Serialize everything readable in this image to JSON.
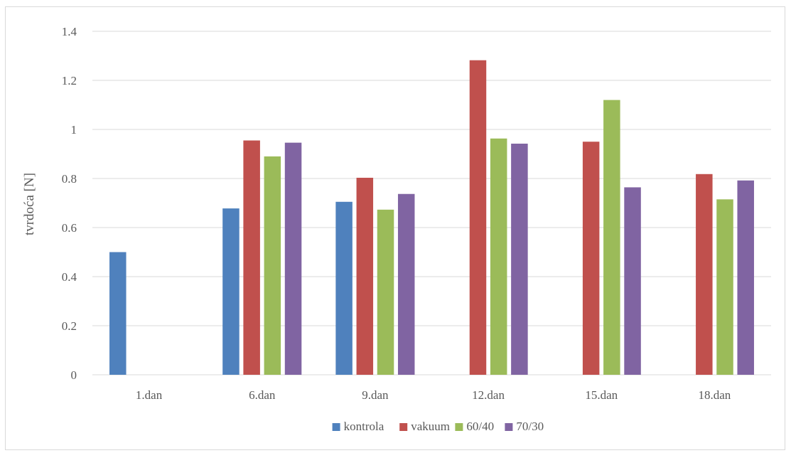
{
  "chart_data": {
    "type": "bar",
    "ylabel": "tvrdoća [N]",
    "xlabel": "",
    "ylim": [
      0,
      1.4
    ],
    "yticks": [
      "0",
      "0.2",
      "0.4",
      "0.6",
      "0.8",
      "1",
      "1.2",
      "1.4"
    ],
    "grid": true,
    "legend_position": "bottom",
    "categories": [
      "1.dan",
      "6.dan",
      "9.dan",
      "12.dan",
      "15.dan",
      "18.dan"
    ],
    "series": [
      {
        "name": "kontrola",
        "color": "#4f81bd",
        "values": [
          0.5,
          0.678,
          0.705,
          null,
          null,
          null
        ]
      },
      {
        "name": "vakuum",
        "color": "#c0504d",
        "values": [
          null,
          0.955,
          0.803,
          1.282,
          0.95,
          0.818
        ]
      },
      {
        "name": "60/40",
        "color": "#9bbb59",
        "values": [
          null,
          0.89,
          0.673,
          0.963,
          1.12,
          0.715
        ]
      },
      {
        "name": "70/30",
        "color": "#8064a2",
        "values": [
          null,
          0.946,
          0.737,
          0.942,
          0.764,
          0.792
        ]
      }
    ]
  }
}
